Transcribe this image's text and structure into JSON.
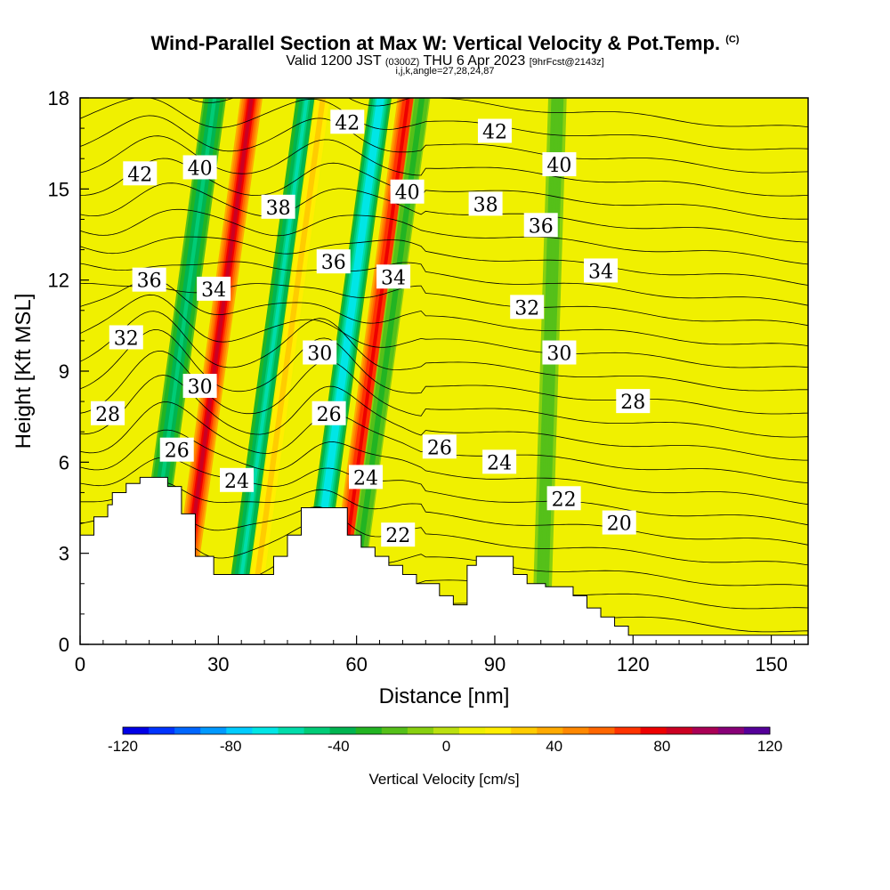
{
  "title": {
    "line1": "Wind-Parallel Section at Max W: Vertical Velocity & Pot.Temp.",
    "copyright": "(C)",
    "valid_prefix": "Valid 1200 JST",
    "valid_zulu": "(0300Z)",
    "valid_date": "THU 6 Apr 2023",
    "forecast": "[9hrFcst@2143z]",
    "line3": "i,j,k,angle=27,28,24,87"
  },
  "chart_data": {
    "type": "heatmap",
    "xlabel": "Distance [nm]",
    "ylabel": "Height [Kft MSL]",
    "xlim": [
      0,
      158
    ],
    "ylim": [
      0,
      18
    ],
    "x_ticks": [
      0,
      30,
      60,
      90,
      120,
      150
    ],
    "y_ticks": [
      0,
      3,
      6,
      9,
      12,
      15,
      18
    ],
    "colorbar": {
      "label": "Vertical Velocity [cm/s]",
      "range": [
        -120,
        120
      ],
      "ticks": [
        -120,
        -80,
        -40,
        0,
        40,
        80,
        120
      ],
      "colors": [
        "#0000e6",
        "#0033ff",
        "#0066ff",
        "#0099ff",
        "#00ccff",
        "#00e6e6",
        "#00dcaa",
        "#00cc77",
        "#00b450",
        "#22b422",
        "#55c019",
        "#88d00f",
        "#bbe00f",
        "#eef000",
        "#ffee00",
        "#ffcc00",
        "#ffaa00",
        "#ff8800",
        "#ff6600",
        "#ff3300",
        "#ee0000",
        "#cc0022",
        "#aa0055",
        "#880077",
        "#550099"
      ]
    },
    "velocity_bands": [
      {
        "x_surface": 13,
        "slope_nm_per_kft": 0.9,
        "width_nm": 2.5,
        "w": -45
      },
      {
        "x_surface": 21,
        "slope_nm_per_kft": 0.9,
        "width_nm": 2.4,
        "w": 85
      },
      {
        "x_surface": 33,
        "slope_nm_per_kft": 0.9,
        "width_nm": 2.3,
        "w": -55
      },
      {
        "x_surface": 36.5,
        "slope_nm_per_kft": 0.9,
        "width_nm": 1.8,
        "w": 30
      },
      {
        "x_surface": 49,
        "slope_nm_per_kft": 0.9,
        "width_nm": 2.4,
        "w": -70
      },
      {
        "x_surface": 55,
        "slope_nm_per_kft": 0.9,
        "width_nm": 2.3,
        "w": 80
      },
      {
        "x_surface": 58,
        "slope_nm_per_kft": 0.9,
        "width_nm": 1.8,
        "w": -30
      },
      {
        "x_surface": 100,
        "slope_nm_per_kft": 0.2,
        "width_nm": 2.0,
        "w": -22
      }
    ],
    "theta_contour_labels": [
      {
        "value": "42",
        "x": 13,
        "y": 15.5
      },
      {
        "value": "40",
        "x": 26,
        "y": 15.7
      },
      {
        "value": "42",
        "x": 58,
        "y": 17.2
      },
      {
        "value": "42",
        "x": 90,
        "y": 16.9
      },
      {
        "value": "40",
        "x": 71,
        "y": 14.9
      },
      {
        "value": "40",
        "x": 104,
        "y": 15.8
      },
      {
        "value": "38",
        "x": 43,
        "y": 14.4
      },
      {
        "value": "38",
        "x": 88,
        "y": 14.5
      },
      {
        "value": "36",
        "x": 15,
        "y": 12.0
      },
      {
        "value": "36",
        "x": 55,
        "y": 12.6
      },
      {
        "value": "36",
        "x": 100,
        "y": 13.8
      },
      {
        "value": "34",
        "x": 29,
        "y": 11.7
      },
      {
        "value": "34",
        "x": 68,
        "y": 12.1
      },
      {
        "value": "34",
        "x": 113,
        "y": 12.3
      },
      {
        "value": "32",
        "x": 10,
        "y": 10.1
      },
      {
        "value": "32",
        "x": 97,
        "y": 11.1
      },
      {
        "value": "30",
        "x": 26,
        "y": 8.5
      },
      {
        "value": "30",
        "x": 52,
        "y": 9.6
      },
      {
        "value": "30",
        "x": 104,
        "y": 9.6
      },
      {
        "value": "28",
        "x": 6,
        "y": 7.6
      },
      {
        "value": "28",
        "x": 120,
        "y": 8.0
      },
      {
        "value": "26",
        "x": 21,
        "y": 6.4
      },
      {
        "value": "26",
        "x": 54,
        "y": 7.6
      },
      {
        "value": "26",
        "x": 78,
        "y": 6.5
      },
      {
        "value": "24",
        "x": 34,
        "y": 5.4
      },
      {
        "value": "24",
        "x": 62,
        "y": 5.5
      },
      {
        "value": "24",
        "x": 91,
        "y": 6.0
      },
      {
        "value": "22",
        "x": 69,
        "y": 3.6
      },
      {
        "value": "22",
        "x": 105,
        "y": 4.8
      },
      {
        "value": "20",
        "x": 117,
        "y": 4.0
      }
    ],
    "terrain": [
      [
        0,
        3.6
      ],
      [
        3,
        3.6
      ],
      [
        3,
        4.2
      ],
      [
        6,
        4.2
      ],
      [
        6,
        4.6
      ],
      [
        7,
        4.6
      ],
      [
        7,
        5.0
      ],
      [
        10,
        5.0
      ],
      [
        10,
        5.3
      ],
      [
        13,
        5.3
      ],
      [
        13,
        5.5
      ],
      [
        19,
        5.5
      ],
      [
        19,
        5.2
      ],
      [
        22,
        5.2
      ],
      [
        22,
        4.3
      ],
      [
        25,
        4.3
      ],
      [
        25,
        2.9
      ],
      [
        29,
        2.9
      ],
      [
        29,
        2.3
      ],
      [
        42,
        2.3
      ],
      [
        42,
        2.9
      ],
      [
        45,
        2.9
      ],
      [
        45,
        3.6
      ],
      [
        48,
        3.6
      ],
      [
        48,
        4.5
      ],
      [
        58,
        4.5
      ],
      [
        58,
        3.6
      ],
      [
        61,
        3.6
      ],
      [
        61,
        3.2
      ],
      [
        64,
        3.2
      ],
      [
        64,
        2.9
      ],
      [
        67,
        2.9
      ],
      [
        67,
        2.6
      ],
      [
        70,
        2.6
      ],
      [
        70,
        2.3
      ],
      [
        73,
        2.3
      ],
      [
        73,
        2.0
      ],
      [
        78,
        2.0
      ],
      [
        78,
        1.6
      ],
      [
        81,
        1.6
      ],
      [
        81,
        1.3
      ],
      [
        84,
        1.3
      ],
      [
        84,
        2.6
      ],
      [
        86,
        2.6
      ],
      [
        86,
        2.9
      ],
      [
        94,
        2.9
      ],
      [
        94,
        2.3
      ],
      [
        97,
        2.3
      ],
      [
        97,
        2.0
      ],
      [
        101,
        2.0
      ],
      [
        101,
        1.9
      ],
      [
        107,
        1.9
      ],
      [
        107,
        1.6
      ],
      [
        110,
        1.6
      ],
      [
        110,
        1.2
      ],
      [
        113,
        1.2
      ],
      [
        113,
        0.9
      ],
      [
        116,
        0.9
      ],
      [
        116,
        0.6
      ],
      [
        119,
        0.6
      ],
      [
        119,
        0.3
      ],
      [
        158,
        0.3
      ],
      [
        158,
        0
      ],
      [
        0,
        0
      ]
    ]
  }
}
